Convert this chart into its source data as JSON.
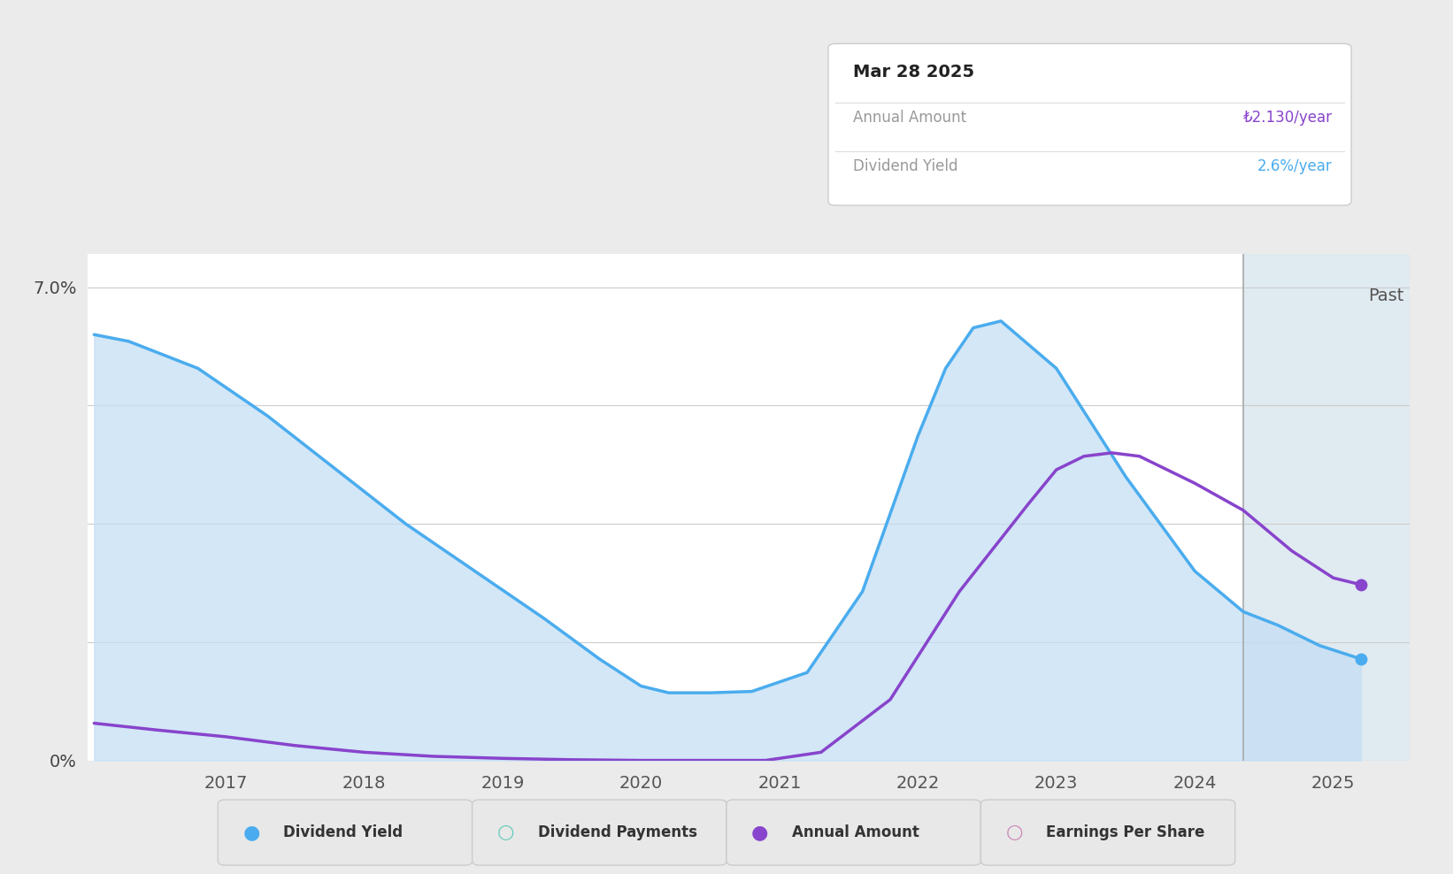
{
  "bg_color": "#ebebeb",
  "plot_bg_color": "#ffffff",
  "ylim": [
    0,
    7.5
  ],
  "xmin": 2016.0,
  "xmax": 2025.55,
  "past_line_x": 2024.35,
  "dividend_yield_x": [
    2016.05,
    2016.3,
    2016.8,
    2017.3,
    2017.8,
    2018.3,
    2018.8,
    2019.3,
    2019.7,
    2020.0,
    2020.2,
    2020.5,
    2020.8,
    2021.2,
    2021.6,
    2022.0,
    2022.2,
    2022.4,
    2022.6,
    2023.0,
    2023.5,
    2024.0,
    2024.35,
    2024.6,
    2024.9,
    2025.2
  ],
  "dividend_yield_y": [
    6.3,
    6.2,
    5.8,
    5.1,
    4.3,
    3.5,
    2.8,
    2.1,
    1.5,
    1.1,
    1.0,
    1.0,
    1.02,
    1.3,
    2.5,
    4.8,
    5.8,
    6.4,
    6.5,
    5.8,
    4.2,
    2.8,
    2.2,
    2.0,
    1.7,
    1.5
  ],
  "annual_amount_x": [
    2016.05,
    2016.5,
    2017.0,
    2017.5,
    2018.0,
    2018.5,
    2019.0,
    2019.5,
    2020.0,
    2020.3,
    2020.6,
    2020.9,
    2021.3,
    2021.8,
    2022.3,
    2022.8,
    2023.0,
    2023.2,
    2023.4,
    2023.6,
    2024.0,
    2024.35,
    2024.7,
    2025.0,
    2025.2
  ],
  "annual_amount_y": [
    0.55,
    0.45,
    0.35,
    0.22,
    0.12,
    0.06,
    0.03,
    0.01,
    0.0,
    0.0,
    0.0,
    0.0,
    0.12,
    0.9,
    2.5,
    3.8,
    4.3,
    4.5,
    4.55,
    4.5,
    4.1,
    3.7,
    3.1,
    2.7,
    2.6
  ],
  "blue_line_color": "#4aacee",
  "purple_line_color": "#8844cc",
  "fill_color": "#c5dff5",
  "fill_alpha": 0.75,
  "past_region_color": "#dde8f0",
  "grid_color": "#cccccc",
  "tooltip_title": "Mar 28 2025",
  "tooltip_annual_label": "Annual Amount",
  "tooltip_annual_value": "₺2.130/year",
  "tooltip_annual_color": "#8844cc",
  "tooltip_yield_label": "Dividend Yield",
  "tooltip_yield_value": "2.6%/year",
  "tooltip_yield_color": "#4aacee",
  "past_label": "Past",
  "legend_items": [
    {
      "label": "Dividend Yield",
      "color": "#4aacee",
      "filled": true
    },
    {
      "label": "Dividend Payments",
      "color": "#66ccbb",
      "filled": false
    },
    {
      "label": "Annual Amount",
      "color": "#8844cc",
      "filled": true
    },
    {
      "label": "Earnings Per Share",
      "color": "#cc88bb",
      "filled": false
    }
  ]
}
